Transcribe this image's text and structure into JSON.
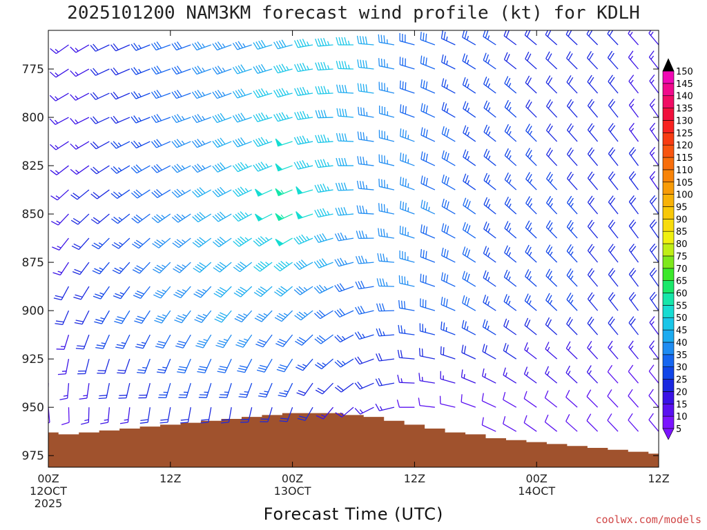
{
  "chart_data": {
    "type": "wind-barb-time-height",
    "title": "2025101200 NAM3KM forecast wind profile (kt) for KDLH",
    "xlabel": "Forecast Time (UTC)",
    "x_axis": {
      "unit": "forecast hour",
      "range": [
        0,
        60
      ],
      "ticks": [
        {
          "hour": 0,
          "lines": [
            "00Z",
            "12OCT",
            "2025"
          ]
        },
        {
          "hour": 12,
          "lines": [
            "12Z"
          ]
        },
        {
          "hour": 24,
          "lines": [
            "00Z",
            "13OCT"
          ]
        },
        {
          "hour": 36,
          "lines": [
            "12Z"
          ]
        },
        {
          "hour": 48,
          "lines": [
            "00Z",
            "14OCT"
          ]
        },
        {
          "hour": 60,
          "lines": [
            "12Z"
          ]
        }
      ]
    },
    "y_axis": {
      "unit": "hPa",
      "range": [
        755,
        981
      ],
      "inverted": true,
      "ticks": [
        775,
        800,
        825,
        850,
        875,
        900,
        925,
        950,
        975
      ]
    },
    "levels_hpa": [
      762.5,
      775,
      787.5,
      800,
      812.5,
      825,
      837.5,
      850,
      862.5,
      875,
      887.5,
      900,
      912.5,
      925,
      937.5,
      950,
      962.5,
      975
    ],
    "times_hours": [
      0,
      2,
      4,
      6,
      8,
      10,
      12,
      14,
      16,
      18,
      20,
      22,
      24,
      26,
      28,
      30,
      32,
      34,
      36,
      38,
      40,
      42,
      44,
      46,
      48,
      50,
      52,
      54,
      56,
      58,
      60
    ],
    "surface_pressure_hpa": {
      "hours": [
        0,
        1,
        3,
        5,
        7,
        9,
        11,
        13,
        15,
        17,
        19,
        21,
        23,
        25,
        27,
        29,
        31,
        33,
        35,
        37,
        39,
        41,
        43,
        45,
        47,
        49,
        51,
        53,
        55,
        57,
        59,
        60
      ],
      "values": [
        963,
        964,
        963,
        962,
        961,
        960,
        959,
        958,
        957,
        956,
        955,
        954,
        953,
        953,
        953,
        954,
        955,
        957,
        959,
        961,
        963,
        964,
        966,
        967,
        968,
        969,
        970,
        971,
        972,
        973,
        974,
        974
      ]
    },
    "wind_kt": {
      "note": "speed and direction keyed by [level] then [time]",
      "anchor_hours": [
        0,
        6,
        12,
        18,
        24,
        30,
        36,
        42,
        48,
        54,
        60
      ],
      "anchor_levels_hpa": [
        762.5,
        800,
        850,
        900,
        950
      ],
      "speed": [
        [
          10,
          18,
          30,
          35,
          42,
          45,
          30,
          25,
          20,
          20,
          15
        ],
        [
          10,
          18,
          30,
          38,
          47,
          40,
          32,
          25,
          22,
          20,
          15
        ],
        [
          12,
          22,
          33,
          42,
          55,
          38,
          35,
          28,
          24,
          22,
          18
        ],
        [
          15,
          25,
          33,
          38,
          35,
          30,
          32,
          28,
          24,
          22,
          20
        ],
        [
          10,
          15,
          20,
          22,
          20,
          15,
          12,
          12,
          10,
          10,
          8
        ]
      ],
      "direction_deg": [
        [
          230,
          245,
          250,
          250,
          255,
          270,
          285,
          300,
          310,
          315,
          320
        ],
        [
          240,
          245,
          250,
          250,
          255,
          275,
          290,
          305,
          315,
          320,
          325
        ],
        [
          220,
          230,
          235,
          240,
          245,
          265,
          290,
          305,
          315,
          320,
          325
        ],
        [
          200,
          210,
          215,
          220,
          225,
          245,
          280,
          300,
          310,
          320,
          325
        ],
        [
          175,
          185,
          190,
          190,
          200,
          230,
          270,
          290,
          305,
          315,
          320
        ]
      ]
    },
    "colorbar": {
      "unit": "kt",
      "levels": [
        5,
        10,
        15,
        20,
        25,
        30,
        35,
        40,
        45,
        50,
        55,
        60,
        65,
        70,
        75,
        80,
        85,
        90,
        95,
        100,
        105,
        110,
        115,
        120,
        125,
        130,
        135,
        140,
        145,
        150
      ],
      "colors": [
        "#7b14ff",
        "#5a10f0",
        "#3a12e6",
        "#1a28e0",
        "#1045e8",
        "#1666f0",
        "#1f8cf2",
        "#1cabf0",
        "#19c6e8",
        "#17dcd2",
        "#16e6aa",
        "#1ae86a",
        "#3ae82a",
        "#7ee81c",
        "#bfee16",
        "#f0f010",
        "#f8dc0c",
        "#f8c808",
        "#f8b208",
        "#f89c08",
        "#f88408",
        "#f86e0c",
        "#f85510",
        "#f83c12",
        "#f82220",
        "#f0103c",
        "#f00c64",
        "#f00a8c",
        "#f00ab4",
        "#f00ad8"
      ]
    },
    "terrain_color": "#a0522d",
    "credit": "coolwx.com/models"
  }
}
